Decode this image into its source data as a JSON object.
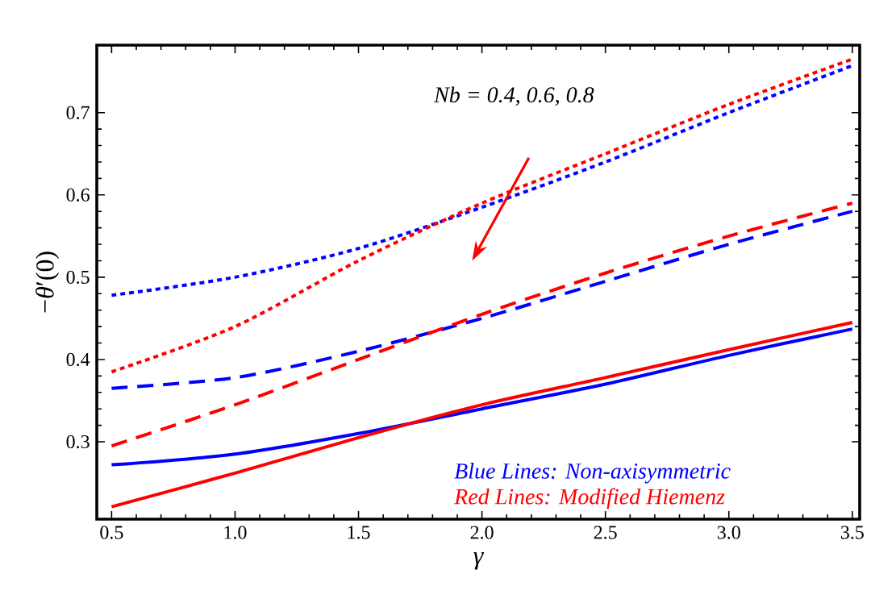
{
  "chart_data": {
    "type": "line",
    "xlabel": "γ",
    "ylabel": "−*θ*′(0)",
    "x": [
      0.5,
      1.0,
      1.5,
      2.0,
      2.5,
      3.0,
      3.5
    ],
    "series": [
      {
        "color": "#0000ff",
        "line_style": "solid",
        "values": [
          0.272,
          0.285,
          0.31,
          0.34,
          0.37,
          0.405,
          0.437
        ]
      },
      {
        "color": "#ff0000",
        "line_style": "solid",
        "values": [
          0.221,
          0.262,
          0.305,
          0.345,
          0.378,
          0.412,
          0.445
        ]
      },
      {
        "color": "#0000ff",
        "line_style": "dashed",
        "values": [
          0.365,
          0.378,
          0.41,
          0.45,
          0.495,
          0.54,
          0.58
        ]
      },
      {
        "color": "#ff0000",
        "line_style": "dashed",
        "values": [
          0.295,
          0.345,
          0.4,
          0.455,
          0.505,
          0.55,
          0.59
        ]
      },
      {
        "color": "#0000ff",
        "line_style": "dotted",
        "values": [
          0.478,
          0.5,
          0.535,
          0.585,
          0.64,
          0.7,
          0.757
        ]
      },
      {
        "color": "#ff0000",
        "line_style": "dotted",
        "values": [
          0.385,
          0.44,
          0.52,
          0.59,
          0.65,
          0.71,
          0.765
        ]
      }
    ],
    "xlim": [
      0.44,
      3.53
    ],
    "ylim": [
      0.206,
      0.782
    ],
    "xticks": [
      0.5,
      {
        "value": 1,
        "label": "1.0"
      },
      1.5,
      {
        "value": 2,
        "label": "2.0"
      },
      2.5,
      {
        "value": 3,
        "label": "3.0"
      },
      3.5
    ],
    "yticks": [
      0.3,
      0.4,
      0.5,
      0.6,
      0.7
    ],
    "grid": false,
    "marker": "none",
    "annotations": [
      "*Nb* = 0.4, 0.6, 0.8",
      "Blue Lines: Non-axisymmetric",
      "Red Lines: Modified Hiemenz"
    ]
  }
}
